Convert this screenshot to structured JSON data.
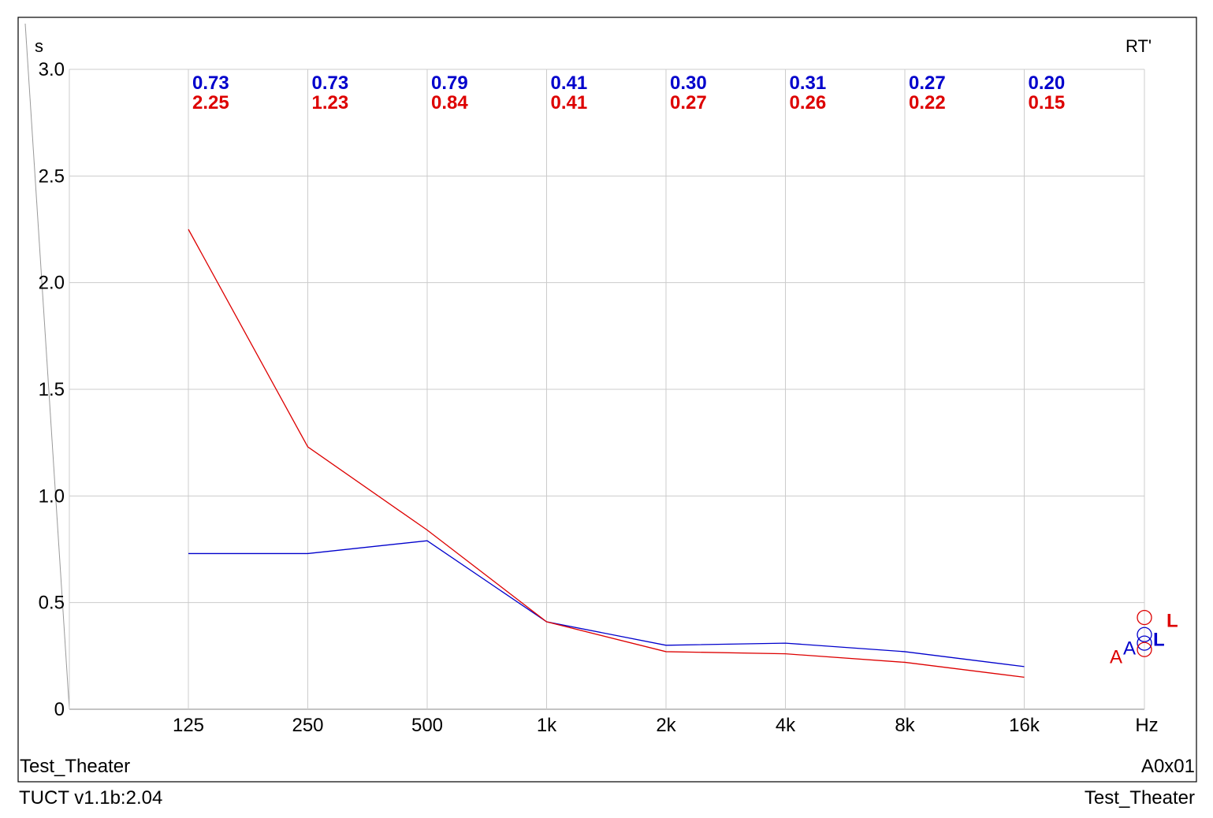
{
  "chart_data": {
    "type": "line",
    "corner_title": "RT'",
    "ylabel": "s",
    "xlabel": "Hz",
    "ylim": [
      0,
      3.0
    ],
    "y_ticks": [
      "0",
      "0.5",
      "1.0",
      "1.5",
      "2.0",
      "2.5",
      "3.0"
    ],
    "y_tick_values": [
      0,
      0.5,
      1.0,
      1.5,
      2.0,
      2.5,
      3.0
    ],
    "categories": [
      "125",
      "250",
      "500",
      "1k",
      "2k",
      "4k",
      "8k",
      "16k"
    ],
    "grid": true,
    "series": [
      {
        "color": "#0000cc",
        "values": [
          0.73,
          0.73,
          0.79,
          0.41,
          0.3,
          0.31,
          0.27,
          0.2
        ],
        "labels": [
          "0.73",
          "0.73",
          "0.79",
          "0.41",
          "0.30",
          "0.31",
          "0.27",
          "0.20"
        ]
      },
      {
        "color": "#dd0000",
        "values": [
          2.25,
          1.23,
          0.84,
          0.41,
          0.27,
          0.26,
          0.22,
          0.15
        ],
        "labels": [
          "2.25",
          "1.23",
          "0.84",
          "0.41",
          "0.27",
          "0.26",
          "0.22",
          "0.15"
        ]
      }
    ],
    "legend": {
      "placement": "right",
      "marker_values": [
        0.43,
        0.35,
        0.31,
        0.28
      ],
      "marker_colors": [
        "#dd0000",
        "#0000cc",
        "#0000cc",
        "#dd0000"
      ],
      "glyphs": [
        {
          "text": "L",
          "color": "#dd0000",
          "value": 0.42
        },
        {
          "text": "L",
          "color": "#0000cc",
          "value": 0.33
        },
        {
          "text": "A",
          "color": "#0000cc",
          "value": 0.29
        },
        {
          "text": "A",
          "color": "#dd0000",
          "value": 0.25
        }
      ]
    }
  },
  "footer": {
    "inner_left": "Test_Theater",
    "inner_right": "A0x01",
    "outer_left": "TUCT v1.1b:2.04",
    "outer_right": "Test_Theater"
  }
}
